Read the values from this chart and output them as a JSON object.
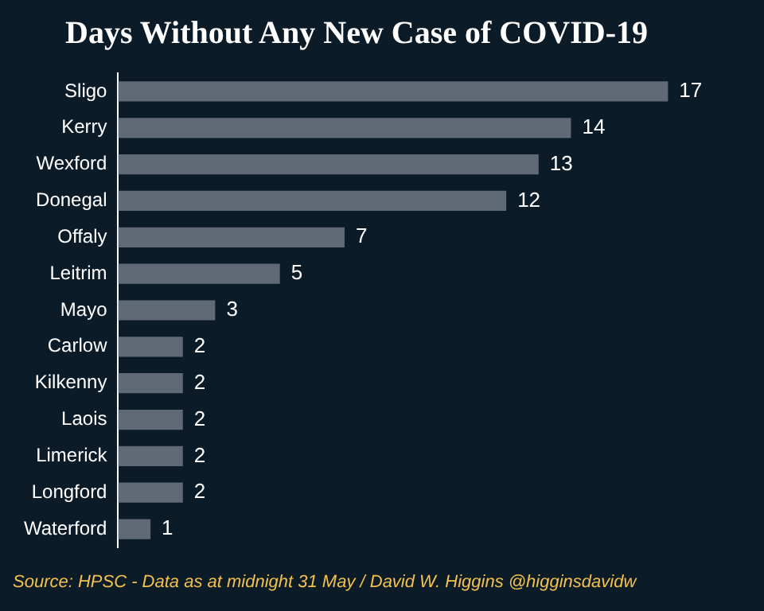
{
  "chart_data": {
    "type": "bar",
    "orientation": "horizontal",
    "title": "Days Without Any New Case of COVID-19",
    "categories": [
      "Sligo",
      "Kerry",
      "Wexford",
      "Donegal",
      "Offaly",
      "Leitrim",
      "Mayo",
      "Carlow",
      "Kilkenny",
      "Laois",
      "Limerick",
      "Longford",
      "Waterford"
    ],
    "values": [
      17,
      14,
      13,
      12,
      7,
      5,
      3,
      2,
      2,
      2,
      2,
      2,
      1
    ],
    "color": "#5f6a76",
    "data_labels": true,
    "legend": false,
    "annotations": [
      "Source: HPSC - Data as at midnight 31 May / David W. Higgins @higginsdavidw"
    ]
  }
}
